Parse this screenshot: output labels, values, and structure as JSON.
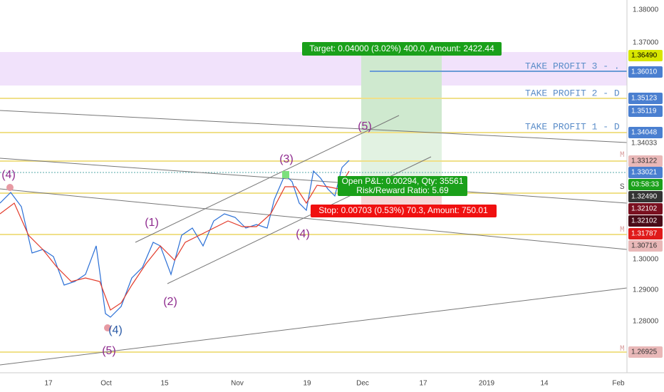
{
  "price_axis": {
    "ticks": [
      "1.38000",
      "1.37000",
      "1.30000",
      "1.29000",
      "1.28000"
    ],
    "badges": [
      "1.36490",
      "1.36010",
      "1.35123",
      "1.35119",
      "1.34048",
      "1.34033",
      "1.33122",
      "1.33021",
      "03:58:33",
      "1.32490",
      "1.32102",
      "1.32102",
      "1.31787",
      "1.30716",
      "1.26925"
    ]
  },
  "time_axis": [
    "17",
    "Oct",
    "15",
    "Nov",
    "19",
    "Dec",
    "17",
    "2019",
    "14",
    "Feb"
  ],
  "wave_labels": [
    "(4)",
    "(5)",
    "(4)",
    "(1)",
    "(2)",
    "(3)",
    "(4)",
    "(5)"
  ],
  "levels": [
    "TAKE PROFIT 3 - .",
    "TAKE PROFIT 2 - D",
    "TAKE PROFIT 1 - D"
  ],
  "markers": [
    "M",
    "S",
    "M",
    "M"
  ],
  "position": {
    "target": "Target: 0.04000 (3.02%) 400.0, Amount: 2422.44",
    "open_pnl": "Open P&L: 0.00294, Qty: 35561",
    "risk_reward": "Risk/Reward Ratio: 5.69",
    "stop": "Stop: 0.00703 (0.53%) 70.3, Amount: 750.01"
  }
}
